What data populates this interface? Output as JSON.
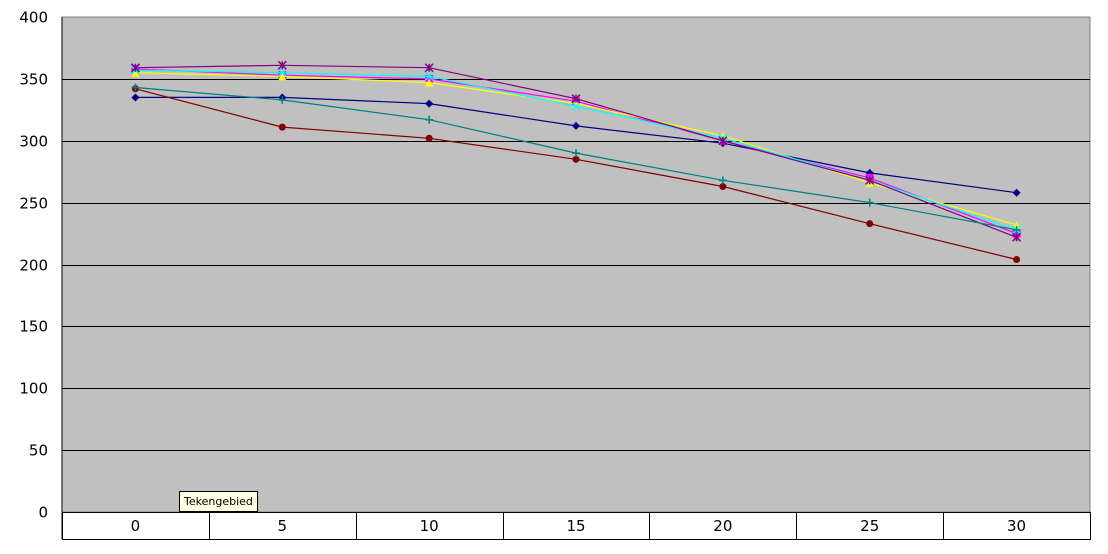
{
  "chart_data": {
    "type": "line",
    "categories": [
      "0",
      "5",
      "10",
      "15",
      "20",
      "25",
      "30"
    ],
    "ylim": [
      0,
      400
    ],
    "yticks": [
      0,
      50,
      100,
      150,
      200,
      250,
      300,
      350,
      400
    ],
    "grid": true,
    "plot_background": "#c0c0c0",
    "series": [
      {
        "color": "#000080",
        "marker": "diamond",
        "values": [
          335,
          335,
          330,
          312,
          298,
          274,
          258
        ]
      },
      {
        "color": "#ff00ff",
        "marker": "square",
        "values": [
          358,
          353,
          350,
          332,
          300,
          270,
          225
        ]
      },
      {
        "color": "#ffff00",
        "marker": "triangle",
        "values": [
          355,
          352,
          347,
          330,
          304,
          266,
          232
        ]
      },
      {
        "color": "#00ffff",
        "marker": "x",
        "values": [
          357,
          355,
          352,
          328,
          302,
          268,
          228
        ]
      },
      {
        "color": "#800080",
        "marker": "star",
        "values": [
          359,
          361,
          359,
          334,
          300,
          268,
          222
        ]
      },
      {
        "color": "#800000",
        "marker": "circle",
        "values": [
          342,
          311,
          302,
          285,
          263,
          233,
          204
        ]
      },
      {
        "color": "#008080",
        "marker": "plus",
        "values": [
          343,
          333,
          317,
          290,
          268,
          250,
          228
        ]
      }
    ]
  },
  "tooltip": {
    "text": "Tekengebied"
  }
}
